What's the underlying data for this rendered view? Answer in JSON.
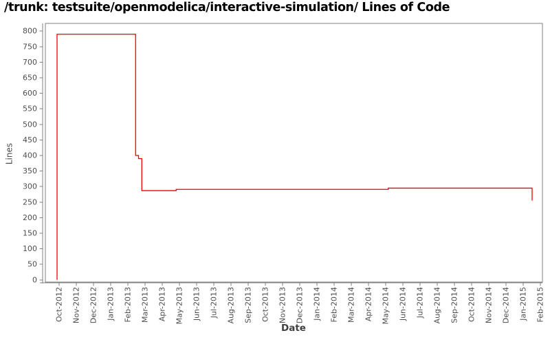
{
  "title": "/trunk: testsuite/openmodelica/interactive-simulation/ Lines of Code",
  "chart_data": {
    "type": "line",
    "title": "/trunk: testsuite/openmodelica/interactive-simulation/ Lines of Code",
    "xlabel": "Date",
    "ylabel": "Lines",
    "grid": false,
    "legend": "none",
    "ylim": [
      0,
      820
    ],
    "y_ticks": [
      0,
      50,
      100,
      150,
      200,
      250,
      300,
      350,
      400,
      450,
      500,
      550,
      600,
      650,
      700,
      750,
      800
    ],
    "x_tick_labels": [
      "Oct-2012",
      "Nov-2012",
      "Dec-2012",
      "Jan-2013",
      "Feb-2013",
      "Mar-2013",
      "Apr-2013",
      "May-2013",
      "Jun-2013",
      "Jul-2013",
      "Aug-2013",
      "Sep-2013",
      "Oct-2013",
      "Nov-2013",
      "Dec-2013",
      "Jan-2014",
      "Feb-2014",
      "Mar-2014",
      "Apr-2014",
      "May-2014",
      "Jun-2014",
      "Jul-2014",
      "Aug-2014",
      "Sep-2014",
      "Oct-2014",
      "Nov-2014",
      "Dec-2014",
      "Jan-2015",
      "Feb-2015"
    ],
    "x_unit": "month-index relative to Oct-2012 tick",
    "series": [
      {
        "name": "Lines of Code",
        "color": "#ee0000",
        "points": [
          {
            "x": -0.12,
            "y": 0
          },
          {
            "x": -0.12,
            "y": 790
          },
          {
            "x": 4.45,
            "y": 790
          },
          {
            "x": 4.45,
            "y": 400
          },
          {
            "x": 4.62,
            "y": 400
          },
          {
            "x": 4.62,
            "y": 390
          },
          {
            "x": 4.81,
            "y": 390
          },
          {
            "x": 4.81,
            "y": 287
          },
          {
            "x": 6.81,
            "y": 287
          },
          {
            "x": 6.81,
            "y": 291
          },
          {
            "x": 19.15,
            "y": 291
          },
          {
            "x": 19.15,
            "y": 295
          },
          {
            "x": 27.52,
            "y": 295
          },
          {
            "x": 27.52,
            "y": 255
          }
        ]
      }
    ],
    "colors": {
      "line": "#ee0000",
      "axis": "#808080",
      "tick_label": "#4d4d4d",
      "title": "#000000"
    }
  }
}
